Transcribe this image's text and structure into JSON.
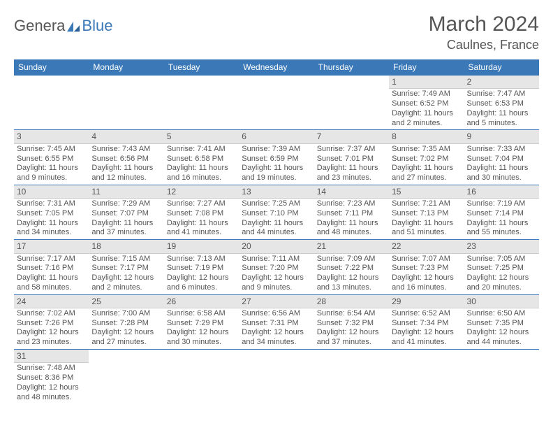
{
  "brand": {
    "part1": "Genera",
    "part2": "Blue"
  },
  "title": "March 2024",
  "location": "Caulnes, France",
  "colors": {
    "accent": "#3a78b8",
    "text": "#555555",
    "header_bg": "#3a78b8",
    "day_bar_bg": "#e6e6e6"
  },
  "weekdays": [
    "Sunday",
    "Monday",
    "Tuesday",
    "Wednesday",
    "Thursday",
    "Friday",
    "Saturday"
  ],
  "weeks": [
    [
      null,
      null,
      null,
      null,
      null,
      {
        "n": "1",
        "sunrise": "Sunrise: 7:49 AM",
        "sunset": "Sunset: 6:52 PM",
        "daylight": "Daylight: 11 hours and 2 minutes."
      },
      {
        "n": "2",
        "sunrise": "Sunrise: 7:47 AM",
        "sunset": "Sunset: 6:53 PM",
        "daylight": "Daylight: 11 hours and 5 minutes."
      }
    ],
    [
      {
        "n": "3",
        "sunrise": "Sunrise: 7:45 AM",
        "sunset": "Sunset: 6:55 PM",
        "daylight": "Daylight: 11 hours and 9 minutes."
      },
      {
        "n": "4",
        "sunrise": "Sunrise: 7:43 AM",
        "sunset": "Sunset: 6:56 PM",
        "daylight": "Daylight: 11 hours and 12 minutes."
      },
      {
        "n": "5",
        "sunrise": "Sunrise: 7:41 AM",
        "sunset": "Sunset: 6:58 PM",
        "daylight": "Daylight: 11 hours and 16 minutes."
      },
      {
        "n": "6",
        "sunrise": "Sunrise: 7:39 AM",
        "sunset": "Sunset: 6:59 PM",
        "daylight": "Daylight: 11 hours and 19 minutes."
      },
      {
        "n": "7",
        "sunrise": "Sunrise: 7:37 AM",
        "sunset": "Sunset: 7:01 PM",
        "daylight": "Daylight: 11 hours and 23 minutes."
      },
      {
        "n": "8",
        "sunrise": "Sunrise: 7:35 AM",
        "sunset": "Sunset: 7:02 PM",
        "daylight": "Daylight: 11 hours and 27 minutes."
      },
      {
        "n": "9",
        "sunrise": "Sunrise: 7:33 AM",
        "sunset": "Sunset: 7:04 PM",
        "daylight": "Daylight: 11 hours and 30 minutes."
      }
    ],
    [
      {
        "n": "10",
        "sunrise": "Sunrise: 7:31 AM",
        "sunset": "Sunset: 7:05 PM",
        "daylight": "Daylight: 11 hours and 34 minutes."
      },
      {
        "n": "11",
        "sunrise": "Sunrise: 7:29 AM",
        "sunset": "Sunset: 7:07 PM",
        "daylight": "Daylight: 11 hours and 37 minutes."
      },
      {
        "n": "12",
        "sunrise": "Sunrise: 7:27 AM",
        "sunset": "Sunset: 7:08 PM",
        "daylight": "Daylight: 11 hours and 41 minutes."
      },
      {
        "n": "13",
        "sunrise": "Sunrise: 7:25 AM",
        "sunset": "Sunset: 7:10 PM",
        "daylight": "Daylight: 11 hours and 44 minutes."
      },
      {
        "n": "14",
        "sunrise": "Sunrise: 7:23 AM",
        "sunset": "Sunset: 7:11 PM",
        "daylight": "Daylight: 11 hours and 48 minutes."
      },
      {
        "n": "15",
        "sunrise": "Sunrise: 7:21 AM",
        "sunset": "Sunset: 7:13 PM",
        "daylight": "Daylight: 11 hours and 51 minutes."
      },
      {
        "n": "16",
        "sunrise": "Sunrise: 7:19 AM",
        "sunset": "Sunset: 7:14 PM",
        "daylight": "Daylight: 11 hours and 55 minutes."
      }
    ],
    [
      {
        "n": "17",
        "sunrise": "Sunrise: 7:17 AM",
        "sunset": "Sunset: 7:16 PM",
        "daylight": "Daylight: 11 hours and 58 minutes."
      },
      {
        "n": "18",
        "sunrise": "Sunrise: 7:15 AM",
        "sunset": "Sunset: 7:17 PM",
        "daylight": "Daylight: 12 hours and 2 minutes."
      },
      {
        "n": "19",
        "sunrise": "Sunrise: 7:13 AM",
        "sunset": "Sunset: 7:19 PM",
        "daylight": "Daylight: 12 hours and 6 minutes."
      },
      {
        "n": "20",
        "sunrise": "Sunrise: 7:11 AM",
        "sunset": "Sunset: 7:20 PM",
        "daylight": "Daylight: 12 hours and 9 minutes."
      },
      {
        "n": "21",
        "sunrise": "Sunrise: 7:09 AM",
        "sunset": "Sunset: 7:22 PM",
        "daylight": "Daylight: 12 hours and 13 minutes."
      },
      {
        "n": "22",
        "sunrise": "Sunrise: 7:07 AM",
        "sunset": "Sunset: 7:23 PM",
        "daylight": "Daylight: 12 hours and 16 minutes."
      },
      {
        "n": "23",
        "sunrise": "Sunrise: 7:05 AM",
        "sunset": "Sunset: 7:25 PM",
        "daylight": "Daylight: 12 hours and 20 minutes."
      }
    ],
    [
      {
        "n": "24",
        "sunrise": "Sunrise: 7:02 AM",
        "sunset": "Sunset: 7:26 PM",
        "daylight": "Daylight: 12 hours and 23 minutes."
      },
      {
        "n": "25",
        "sunrise": "Sunrise: 7:00 AM",
        "sunset": "Sunset: 7:28 PM",
        "daylight": "Daylight: 12 hours and 27 minutes."
      },
      {
        "n": "26",
        "sunrise": "Sunrise: 6:58 AM",
        "sunset": "Sunset: 7:29 PM",
        "daylight": "Daylight: 12 hours and 30 minutes."
      },
      {
        "n": "27",
        "sunrise": "Sunrise: 6:56 AM",
        "sunset": "Sunset: 7:31 PM",
        "daylight": "Daylight: 12 hours and 34 minutes."
      },
      {
        "n": "28",
        "sunrise": "Sunrise: 6:54 AM",
        "sunset": "Sunset: 7:32 PM",
        "daylight": "Daylight: 12 hours and 37 minutes."
      },
      {
        "n": "29",
        "sunrise": "Sunrise: 6:52 AM",
        "sunset": "Sunset: 7:34 PM",
        "daylight": "Daylight: 12 hours and 41 minutes."
      },
      {
        "n": "30",
        "sunrise": "Sunrise: 6:50 AM",
        "sunset": "Sunset: 7:35 PM",
        "daylight": "Daylight: 12 hours and 44 minutes."
      }
    ],
    [
      {
        "n": "31",
        "sunrise": "Sunrise: 7:48 AM",
        "sunset": "Sunset: 8:36 PM",
        "daylight": "Daylight: 12 hours and 48 minutes."
      },
      null,
      null,
      null,
      null,
      null,
      null
    ]
  ]
}
